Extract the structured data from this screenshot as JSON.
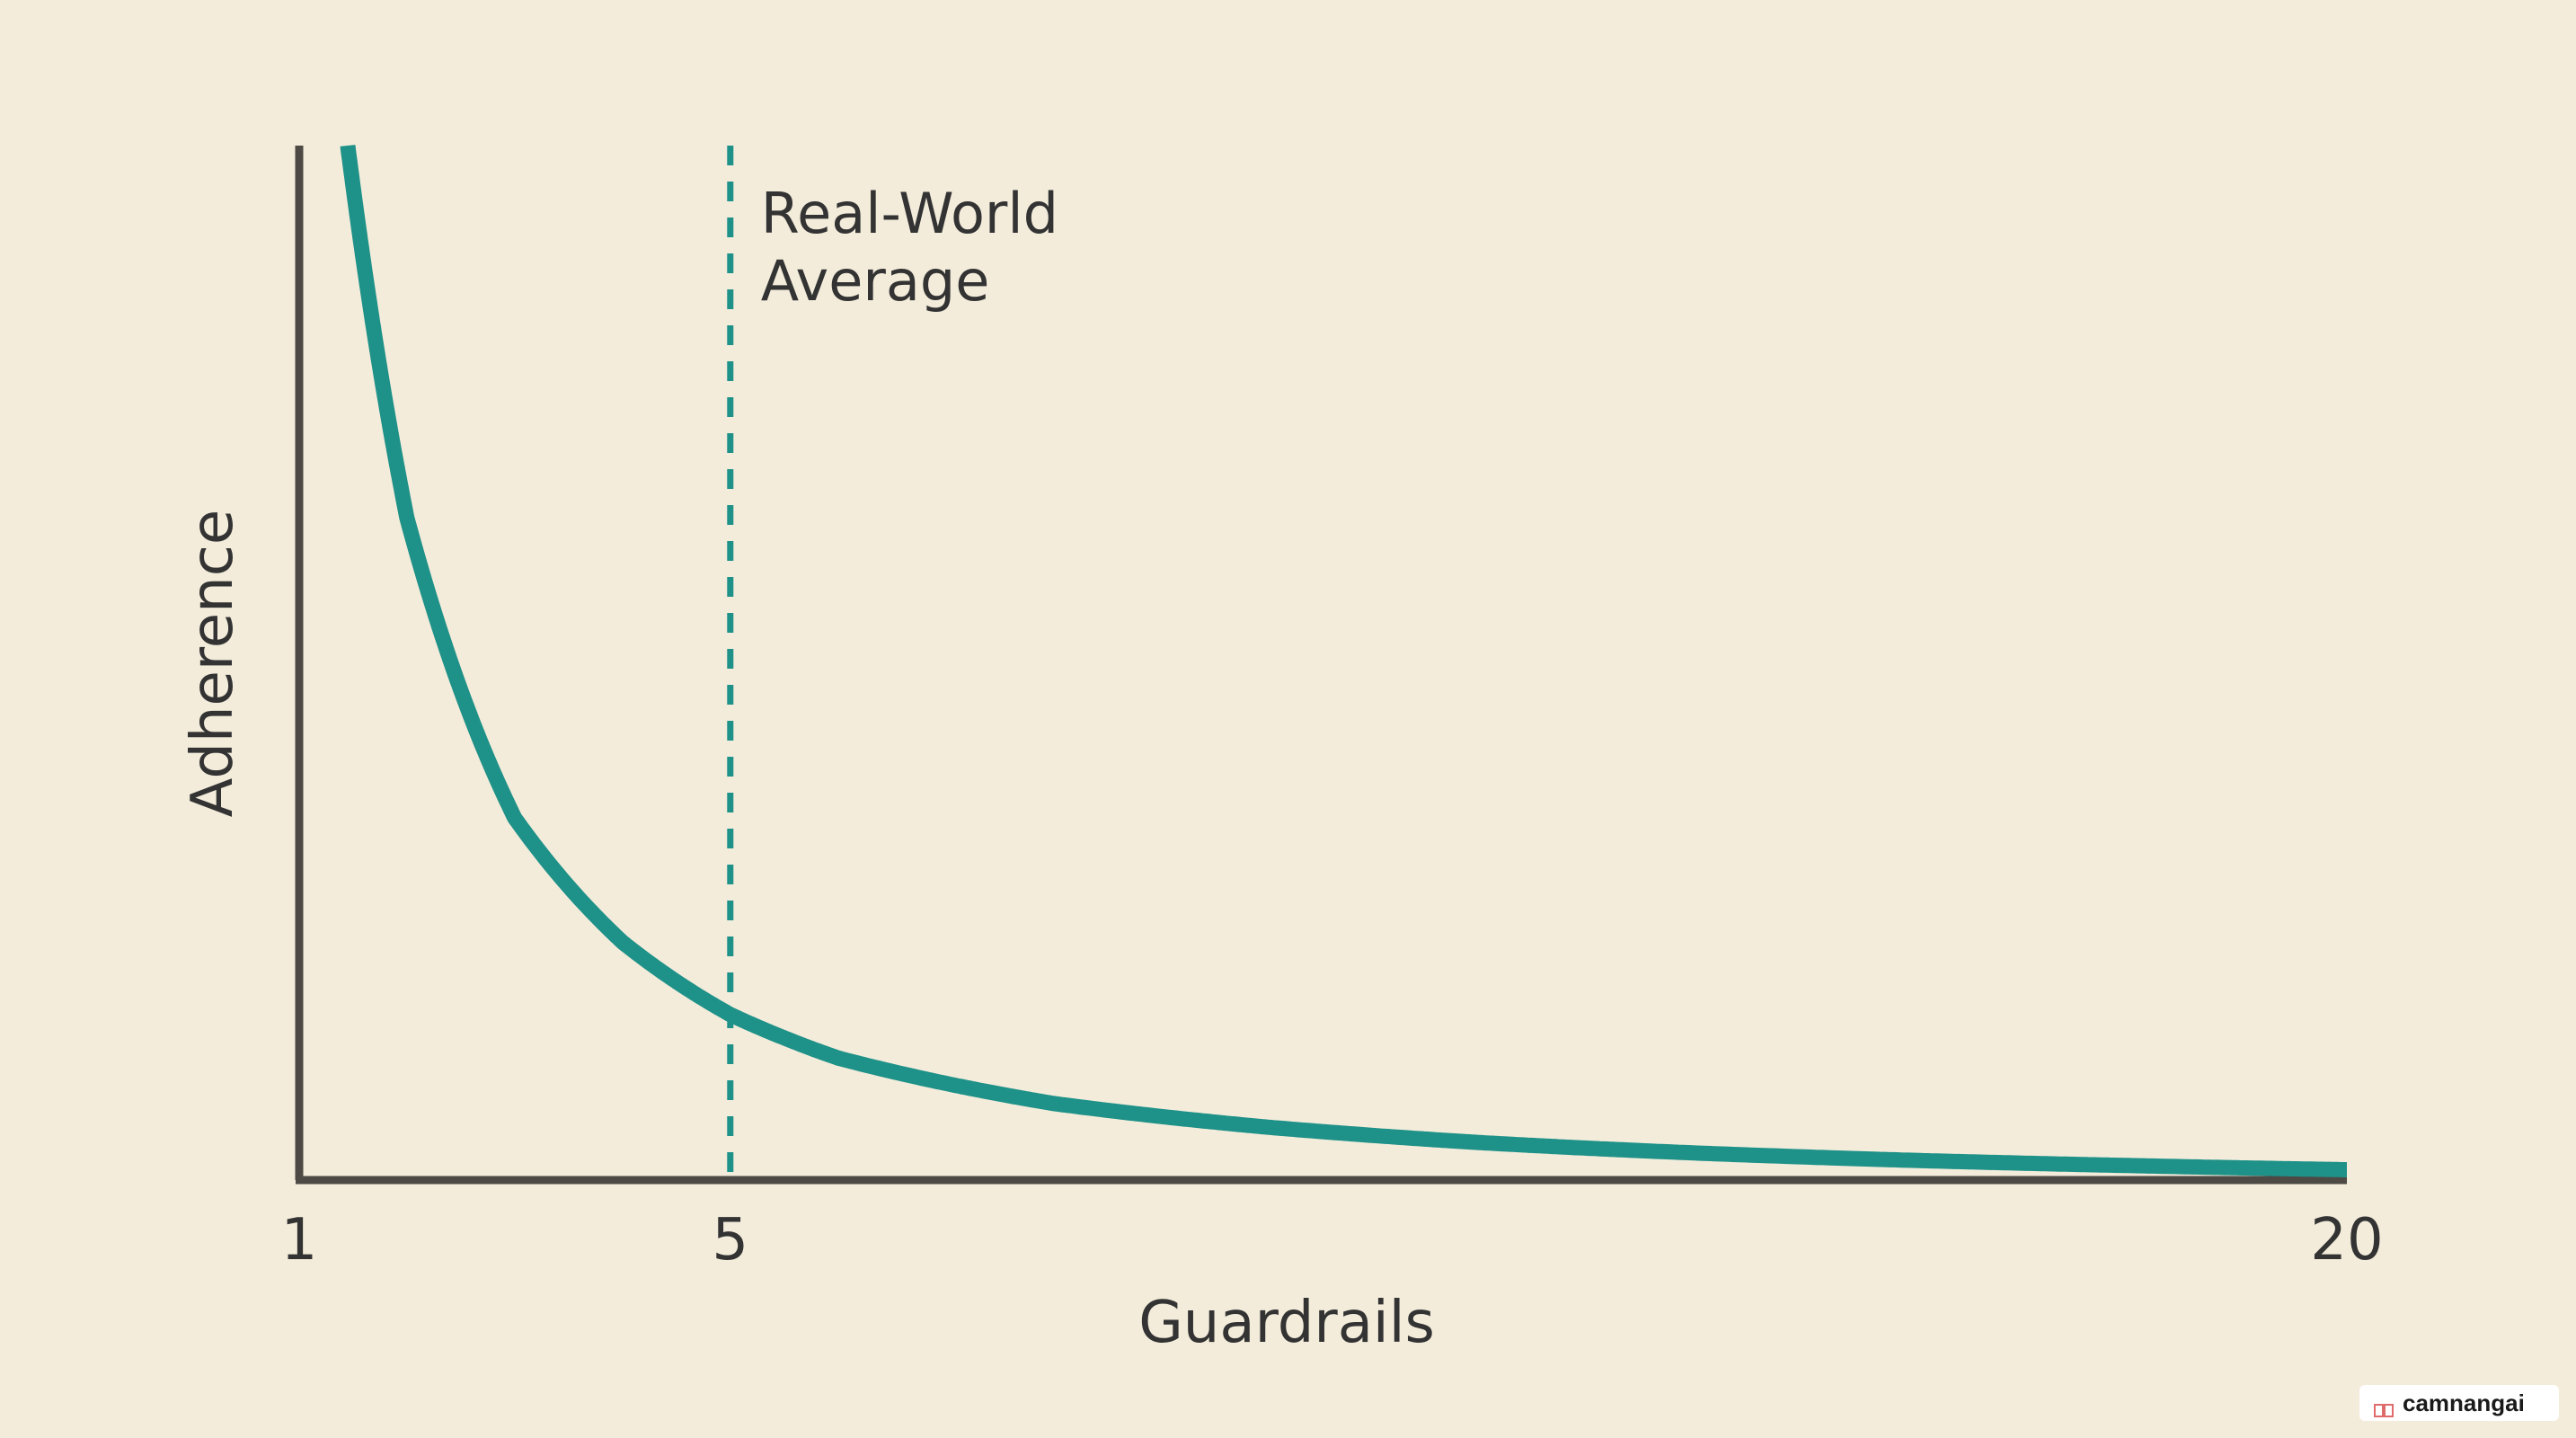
{
  "chart_data": {
    "type": "line",
    "title": "",
    "xlabel": "Guardrails",
    "ylabel": "Adherence",
    "x_ticks": [
      "1",
      "5",
      "20"
    ],
    "xlim": [
      1,
      20
    ],
    "ylim": [
      0,
      1
    ],
    "grid": false,
    "series": [
      {
        "x": [
          1.45,
          2,
          3,
          4,
          5,
          6,
          8,
          10,
          12,
          14,
          16,
          18,
          20
        ],
        "y": [
          1.0,
          0.64,
          0.35,
          0.23,
          0.16,
          0.118,
          0.074,
          0.051,
          0.036,
          0.026,
          0.019,
          0.014,
          0.01
        ]
      }
    ],
    "reference_line": {
      "x": 5,
      "label_lines": [
        "Real-World",
        "Average"
      ],
      "style": "dashed"
    },
    "colors": {
      "curve": "#1e9188",
      "reference": "#1e9188",
      "axis": "#4d4a45",
      "text": "#333333",
      "background": "#f3ecdb"
    }
  },
  "watermark": {
    "text": "camnangai",
    "icon": "book-icon"
  }
}
